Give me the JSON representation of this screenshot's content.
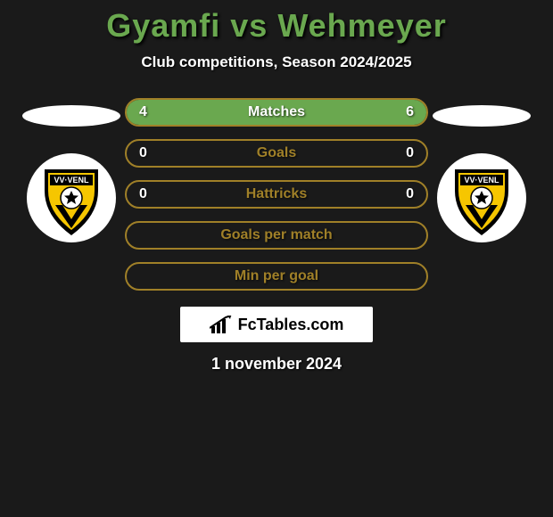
{
  "title": "Gyamfi vs Wehmeyer",
  "subtitle": "Club competitions, Season 2024/2025",
  "date": "1 november 2024",
  "watermark": "FcTables.com",
  "colors": {
    "title": "#6aa84f",
    "text": "#ffffff",
    "bg": "#1a1a1a",
    "bar_border": "#a08028",
    "left_fill": "#6aa84f",
    "right_fill": "#6aa84f",
    "bar_bg": "#1a1a1a"
  },
  "club_logo": {
    "bg": "#ffffff",
    "shield_top_text": "VV·VENL",
    "shield_yellow": "#f6c600",
    "shield_black": "#000000",
    "v_color": "#ffffff"
  },
  "bars": [
    {
      "label": "Matches",
      "left": "4",
      "right": "6",
      "left_pct": 40,
      "right_pct": 60,
      "show_vals": true
    },
    {
      "label": "Goals",
      "left": "0",
      "right": "0",
      "left_pct": 0,
      "right_pct": 0,
      "show_vals": true
    },
    {
      "label": "Hattricks",
      "left": "0",
      "right": "0",
      "left_pct": 0,
      "right_pct": 0,
      "show_vals": true
    },
    {
      "label": "Goals per match",
      "left": "",
      "right": "",
      "left_pct": 0,
      "right_pct": 0,
      "show_vals": false
    },
    {
      "label": "Min per goal",
      "left": "",
      "right": "",
      "left_pct": 0,
      "right_pct": 0,
      "show_vals": false
    }
  ]
}
